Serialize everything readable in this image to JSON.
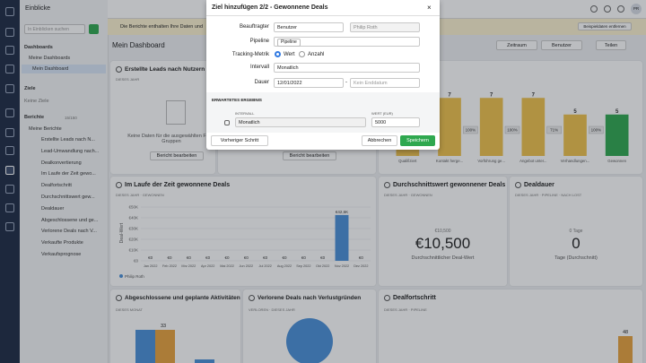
{
  "topbar": {
    "title": "Einblicke",
    "avatar": "PR"
  },
  "sidebar": {
    "search": "In Einblicken suchen",
    "dashboards": "Dashboards",
    "my_dashboards": "Meine Dashboards",
    "my_dashboard": "Mein Dashboard",
    "goals": "Ziele",
    "no_goals": "Keine Ziele",
    "reports": "Berichte",
    "report_count": "15/150",
    "my_reports": "Meine Berichte",
    "items": [
      "Erstellte Leads nach N...",
      "Lead-Umwandlung nach...",
      "Dealkonvertierung",
      "Im Laufe der Zeit gewo...",
      "Dealfortschritt",
      "Durchschnittswert gew...",
      "Dealdauer",
      "Abgeschlossene und ge...",
      "Verlorene Deals nach V...",
      "Verkaufte Produkte",
      "Verkaufsprognose"
    ]
  },
  "banner": {
    "text": "Die Berichte enthalten Ihre Daten und",
    "button": "Beispieldaten entfernen"
  },
  "header": {
    "title": "Mein Dashboard",
    "period": "Zeitraum",
    "user": "Benutzer",
    "share": "Teilen"
  },
  "cards": {
    "leads": {
      "title": "Erstellte Leads nach Nutzern",
      "subtitle": "DIESES JAHR",
      "empty": "Keine Daten für die ausgewählten Filter, Gruppen",
      "edit": "Bericht bearbeiten"
    },
    "middle": {
      "edit": "Bericht bearbeiten"
    },
    "won_over_time": {
      "title": "Im Laufe der Zeit gewonnene Deals",
      "subtitle": "DIESES JAHR · GEWONNEN",
      "y_label": "Deal-Wert",
      "legend": "Philip Roth"
    },
    "avg_value": {
      "title": "Durchschnittswert gewonnener Deals",
      "subtitle": "DIESES JAHR · GEWONNEN",
      "small": "€10,500",
      "big": "€10,500",
      "caption": "Durchschnittlicher Deal-Wert"
    },
    "duration": {
      "title": "Dealdauer",
      "subtitle": "DIESES JAHR · PIPELINE · NACH LOST",
      "small": "0 Tage",
      "big": "0",
      "caption": "Tage (Durchschnitt)"
    },
    "activities": {
      "title": "Abgeschlossene und geplante Aktivitäten",
      "subtitle": "DIESES MONAT",
      "label": "33"
    },
    "lost": {
      "title": "Verlorene Deals nach Verlustgründen",
      "subtitle": "VERLOREN · DIESES JAHR"
    },
    "progress": {
      "title": "Dealfortschritt",
      "subtitle": "DIESES JAHR · PIPELINE",
      "label": "48"
    }
  },
  "modal": {
    "title": "Ziel hinzufügen 2/2 - Gewonnene Deals",
    "assignee": "Beauftragter",
    "assignee_type": "Benutzer",
    "assignee_name": "Philip Roth",
    "pipeline": "Pipeline",
    "pipeline_tag": "Pipeline",
    "metric": "Tracking-Metrik",
    "metric_value": "Wert",
    "metric_count": "Anzahl",
    "interval": "Intervall",
    "interval_value": "Monatlich",
    "duration": "Dauer",
    "start": "12/01/2022",
    "dash": "-",
    "end": "Kein Enddatum",
    "expected": "ERWARTETES ERGEBNIS",
    "exp_interval": "INTERVALL",
    "exp_interval_value": "Monatlich",
    "exp_value": "WERT (EUR)",
    "exp_value_value": "5000",
    "back": "Vorheriger Schritt",
    "cancel": "Abbrechen",
    "save": "Speichern"
  },
  "chart_data": [
    {
      "type": "bar",
      "categories": [
        "Qualifiziert",
        "Kontakt herge...",
        "Vorführung ge...",
        "Angebot unter...",
        "Verhandlungen...",
        "Gewonnen"
      ],
      "values": [
        7,
        7,
        7,
        7,
        5,
        5
      ],
      "colors": [
        "#f0c24b",
        "#f0c24b",
        "#f0c24b",
        "#f0c24b",
        "#f0c24b",
        "#2fa84f"
      ],
      "conversion_labels": [
        "100%",
        "100%",
        "100%",
        "71%",
        "100%"
      ],
      "ylim": [
        0,
        8
      ]
    },
    {
      "type": "bar",
      "categories": [
        "Jan 2022",
        "Feb 2022",
        "Mrz 2022",
        "Apr 2022",
        "Mai 2022",
        "Jun 2022",
        "Jul 2022",
        "Aug 2022",
        "Sep 2022",
        "Okt 2022",
        "Nov 2022",
        "Dez 2022"
      ],
      "values": [
        0,
        0,
        0,
        0,
        0,
        0,
        0,
        0,
        0,
        0,
        42600,
        0
      ],
      "value_labels": [
        "€0",
        "€0",
        "€0",
        "€0",
        "€0",
        "€0",
        "€0",
        "€0",
        "€0",
        "€0",
        "€42,6K",
        "€0"
      ],
      "color": "#4a90d9",
      "ylim": [
        0,
        50000
      ],
      "yticks": [
        {
          "value": 0,
          "label": "€0"
        },
        {
          "value": 10000,
          "label": "€10K"
        },
        {
          "value": 20000,
          "label": "€20K"
        },
        {
          "value": 30000,
          "label": "€30K"
        },
        {
          "value": 40000,
          "label": "€40K"
        },
        {
          "value": 50000,
          "label": "€50K"
        }
      ],
      "grid": true
    }
  ]
}
